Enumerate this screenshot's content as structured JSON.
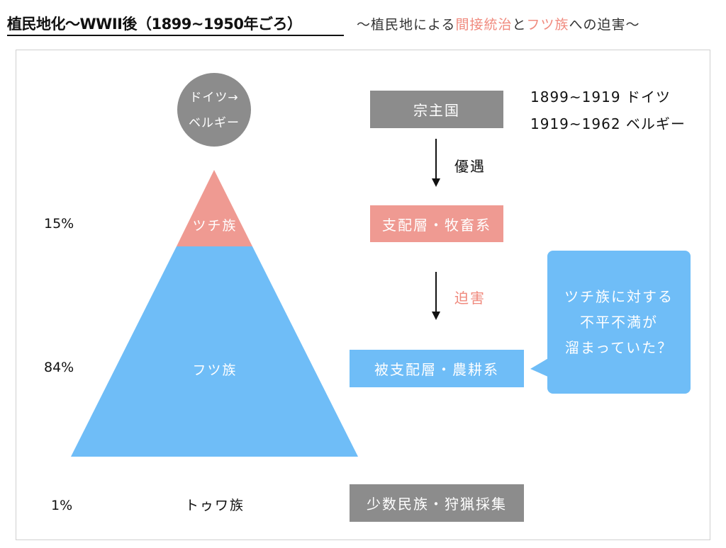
{
  "header": {
    "title": "植民地化〜WWII後（1899~1950年ごろ）",
    "subtitle_parts": [
      "〜植民地による",
      "間接統治",
      "と",
      "フツ族",
      "への迫害〜"
    ]
  },
  "colonizer_circle": {
    "line1": "ドイツ→",
    "line2": "ベルギー"
  },
  "pyramid": {
    "top_label": "ツチ族",
    "bottom_label": "フツ族",
    "below_label": "トゥワ族"
  },
  "percentages": {
    "tutsi": "15%",
    "hutu": "84%",
    "twa": "1%"
  },
  "boxes": {
    "suzerain": "宗主国",
    "ruling": "支配層・牧畜系",
    "ruled": "被支配層・農耕系",
    "minority": "少数民族・狩猟採集"
  },
  "relations": {
    "favor": "優遇",
    "persecution": "迫害"
  },
  "years": {
    "line1": "1899~1919 ドイツ",
    "line2": "1919~1962 ベルギー"
  },
  "callout": {
    "line1": "ツチ族に対する",
    "line2": "不平不満が",
    "line3": "溜まっていた？"
  },
  "colors": {
    "gray": "#8c8c8c",
    "pink": "#ef9a92",
    "blue": "#6fbdf7",
    "highlight": "#f08a7e"
  }
}
